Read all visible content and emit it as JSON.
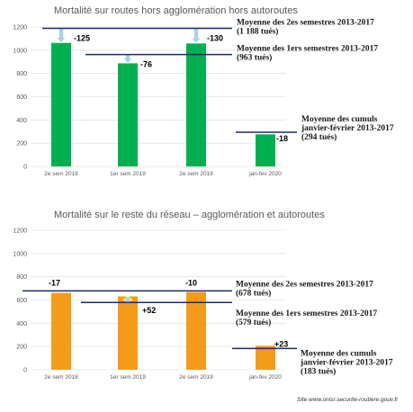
{
  "chart_data": [
    {
      "type": "bar",
      "title": "Mortalité sur routes hors agglomération hors autoroutes",
      "categories": [
        "2e sem 2018",
        "1er sem 2019",
        "2e sem 2019",
        "jan-fev 2020"
      ],
      "values": [
        1063,
        887,
        1058,
        276
      ],
      "deltas": [
        "-125",
        "-76",
        "-130",
        "-18"
      ],
      "ylim": [
        0,
        1200
      ],
      "yticks": [
        0,
        200,
        400,
        600,
        800,
        1000,
        1200
      ],
      "grid": true,
      "bar_color": "#00b050",
      "references": [
        {
          "value": 1188,
          "line1": "Moyenne des 2es semestres 2013-2017",
          "line2": "(1 188 tués)",
          "line3": ""
        },
        {
          "value": 963,
          "line1": "Moyenne des 1ers semestres 2013-2017",
          "line2": "(963 tués)",
          "line3": ""
        },
        {
          "value": 294,
          "line1": "Moyenne des cumuls",
          "line2": "janvier-février 2013-2017",
          "line3": "(294 tués)"
        }
      ]
    },
    {
      "type": "bar",
      "title": "Mortalité sur le reste du réseau – agglomération et autoroutes",
      "categories": [
        "2e sem 2018",
        "1er sem 2019",
        "2e sem 2019",
        "jan-fev 2020"
      ],
      "values": [
        661,
        631,
        668,
        206
      ],
      "deltas": [
        "-17",
        "+52",
        "-10",
        "+23"
      ],
      "ylim": [
        0,
        1200
      ],
      "yticks": [
        0,
        200,
        400,
        600,
        800,
        1000,
        1200
      ],
      "grid": true,
      "bar_color": "#f59b1a",
      "references": [
        {
          "value": 678,
          "line1": "Moyenne des 2es semestres 2013-2017",
          "line2": "(678 tués)",
          "line3": ""
        },
        {
          "value": 579,
          "line1": "Moyenne des 1ers semestres 2013-2017",
          "line2": "(579 tués)",
          "line3": ""
        },
        {
          "value": 183,
          "line1": "Moyenne des cumuls",
          "line2": "janvier-février 2013-2017",
          "line3": "(183 tués)"
        }
      ]
    }
  ],
  "source": "Site www.onisr.securite-routiere.gouv.fr",
  "colors": {
    "ref_line": "#1f2a6b",
    "arrow": "#a9d3df",
    "grid": "#d9d9d9"
  }
}
